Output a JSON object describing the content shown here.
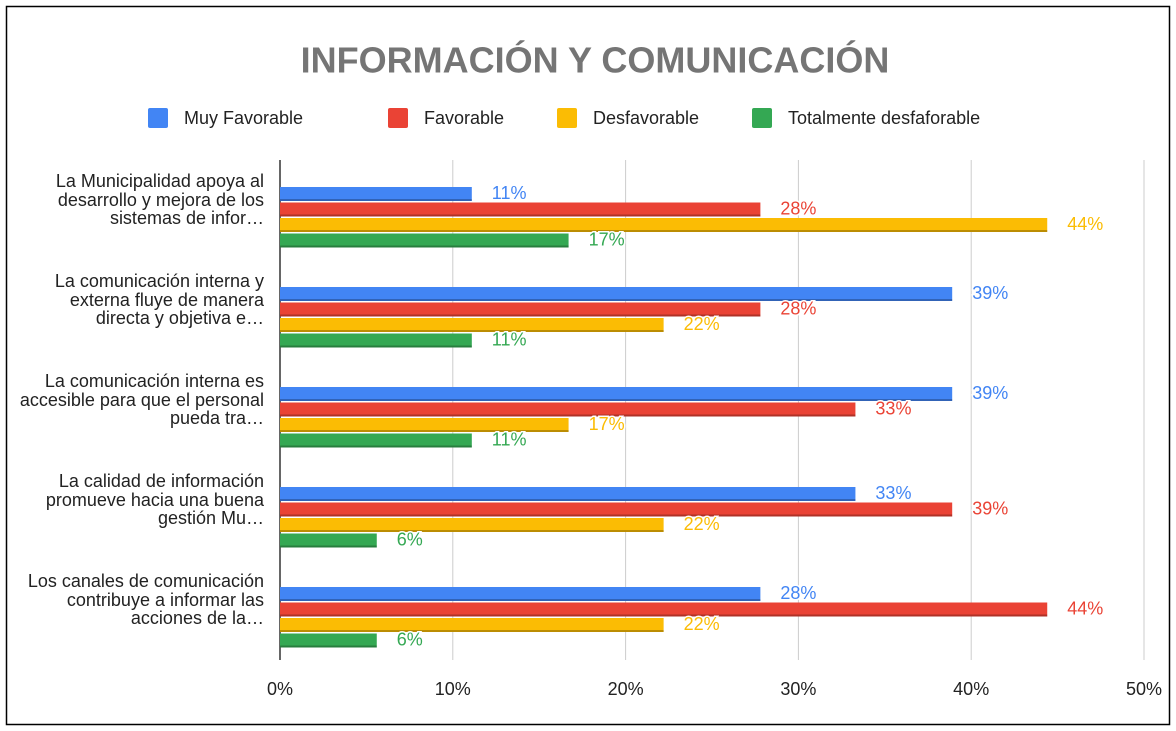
{
  "chart_data": {
    "type": "hbar",
    "title": "INFORMACIÓN Y COMUNICACIÓN",
    "categories": [
      "La Municipalidad apoya al desarrollo y mejora de los sistemas de infor…",
      "La comunicación interna y externa fluye de manera directa y objetiva e…",
      "La comunicación interna es accesible para que el personal pueda tra…",
      "La calidad de información promueve hacia una buena gestión Mu…",
      "Los canales de comunicación contribuye a informar las acciones de la…"
    ],
    "series": [
      {
        "name": "Muy Favorable",
        "color": "#4285f4",
        "values": [
          11.1,
          38.9,
          38.9,
          33.3,
          27.8
        ],
        "value_labels": [
          "11%",
          "39%",
          "39%",
          "33%",
          "28%"
        ]
      },
      {
        "name": "Favorable",
        "color": "#ea4335",
        "values": [
          27.8,
          27.8,
          33.3,
          38.9,
          44.4
        ],
        "value_labels": [
          "28%",
          "28%",
          "33%",
          "39%",
          "44%"
        ]
      },
      {
        "name": "Desfavorable",
        "color": "#fbbc04",
        "values": [
          44.4,
          22.2,
          16.7,
          22.2,
          22.2
        ],
        "value_labels": [
          "44%",
          "22%",
          "17%",
          "22%",
          "22%"
        ]
      },
      {
        "name": "Totalmente desfaforable",
        "color": "#34a853",
        "values": [
          16.7,
          11.1,
          11.1,
          5.6,
          5.6
        ],
        "value_labels": [
          "17%",
          "11%",
          "11%",
          "6%",
          "6%"
        ]
      }
    ],
    "xlim": [
      0,
      50
    ],
    "xticks": [
      {
        "value": 0,
        "label": "0%"
      },
      {
        "value": 10,
        "label": "10%"
      },
      {
        "value": 20,
        "label": "20%"
      },
      {
        "value": 30,
        "label": "30%"
      },
      {
        "value": 40,
        "label": "40%"
      },
      {
        "value": 50,
        "label": "50%"
      }
    ],
    "grid": true
  }
}
